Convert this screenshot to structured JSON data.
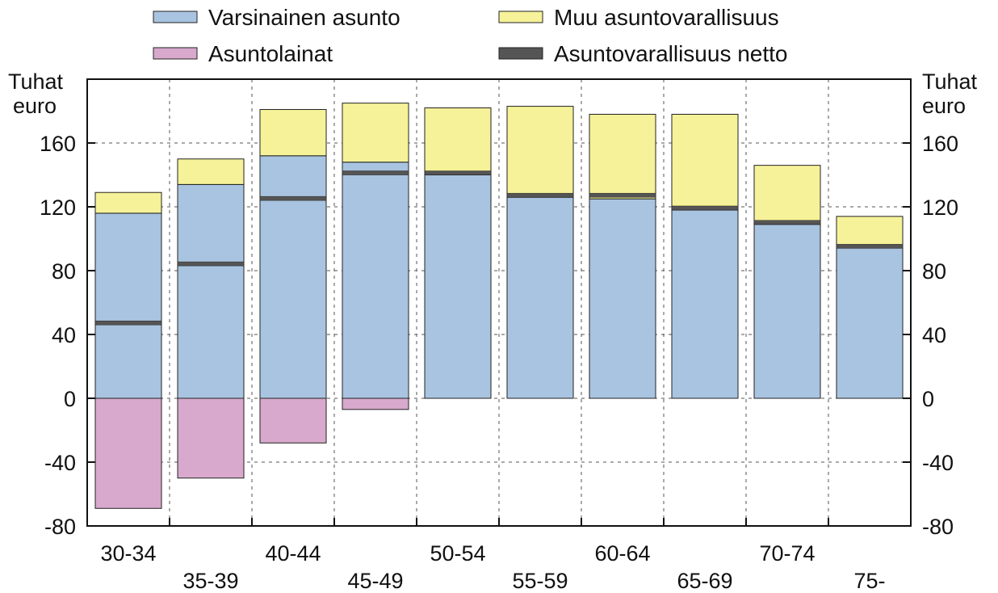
{
  "chart_data": {
    "type": "bar",
    "stacked": true,
    "categories": [
      "30-34",
      "35-39",
      "40-44",
      "45-49",
      "50-54",
      "55-59",
      "60-64",
      "65-69",
      "70-74",
      "75-"
    ],
    "series": [
      {
        "name": "Varsinainen asunto",
        "color": "#a9c4e0",
        "kind": "stack",
        "values": [
          116,
          134,
          152,
          148,
          140,
          126,
          125,
          118,
          109,
          95
        ]
      },
      {
        "name": "Muu asuntovarallisuus",
        "color": "#f6f299",
        "kind": "stack",
        "values": [
          13,
          16,
          29,
          37,
          42,
          57,
          53,
          60,
          37,
          19
        ]
      },
      {
        "name": "Asuntolainat",
        "color": "#d8a9cc",
        "kind": "negative",
        "values": [
          -69,
          -50,
          -28,
          -7,
          0,
          0,
          0,
          0,
          0,
          0
        ]
      },
      {
        "name": "Asuntovarallisuus netto",
        "color": "#555555",
        "kind": "marker",
        "values": [
          47,
          84,
          125,
          141,
          141,
          127,
          127,
          119,
          110,
          95
        ]
      }
    ],
    "ylabel_left": "Tuhat\neuro",
    "ylabel_right": "Tuhat\neuro",
    "ylim": [
      -80,
      200
    ],
    "yticks": [
      -80,
      -40,
      0,
      40,
      80,
      120,
      160
    ],
    "grid": true,
    "legend": "top"
  },
  "labels": {
    "left_unit_line1": "Tuhat",
    "left_unit_line2": "euro",
    "right_unit_line1": "Tuhat",
    "right_unit_line2": "euro"
  }
}
